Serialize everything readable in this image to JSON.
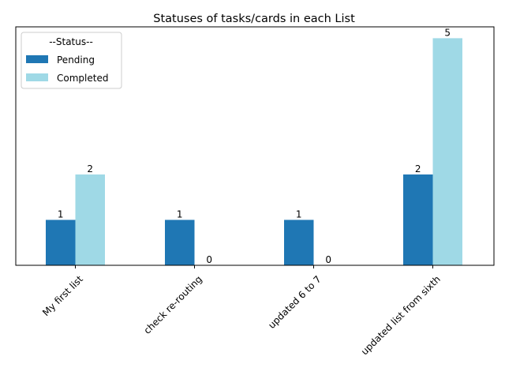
{
  "chart_data": {
    "type": "bar",
    "title": "Statuses of tasks/cards in each List",
    "xlabel": "",
    "ylabel": "",
    "categories": [
      "My first list",
      "check re-routing",
      "updated 6 to 7",
      "updated list from sixth"
    ],
    "series": [
      {
        "name": "Pending",
        "values": [
          1,
          1,
          1,
          2
        ],
        "color": "#1f77b4"
      },
      {
        "name": "Completed",
        "values": [
          2,
          0,
          0,
          5
        ],
        "color": "#9fd9e6"
      }
    ],
    "ylim": [
      0,
      5.25
    ],
    "y_axis_visible": false,
    "grid": false,
    "legend": {
      "title": "--Status--",
      "placement": "upper left"
    },
    "tick_label_rotation": 45
  }
}
